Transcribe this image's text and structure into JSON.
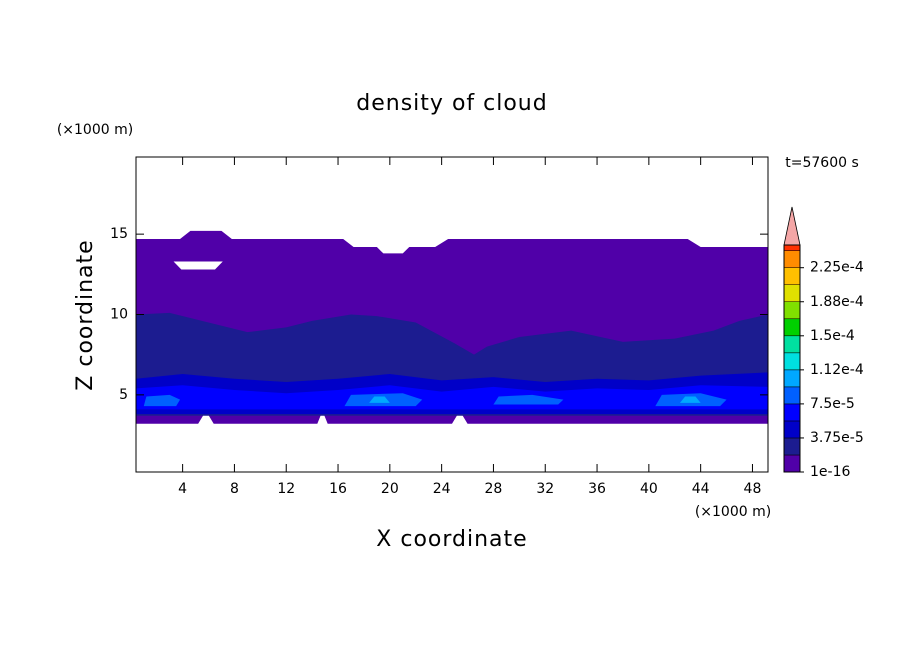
{
  "chart_data": {
    "type": "contour",
    "title": "density of cloud",
    "xlabel": "X coordinate",
    "ylabel": "Z coordinate",
    "x_unit": "(×1000 m)",
    "y_unit": "(×1000 m)",
    "annotation": "t=57600 s",
    "xlim": [
      0.4,
      49.2
    ],
    "ylim": [
      0.2,
      19.8
    ],
    "xticks": [
      4,
      8,
      12,
      16,
      20,
      24,
      28,
      32,
      36,
      40,
      44,
      48
    ],
    "yticks": [
      5,
      10,
      15
    ],
    "regions": [
      {
        "color": "#5000a8",
        "points": [
          [
            0.4,
            3.2
          ],
          [
            5.2,
            3.2
          ],
          [
            5.8,
            4.0
          ],
          [
            6.4,
            3.2
          ],
          [
            14.4,
            3.2
          ],
          [
            14.8,
            4.0
          ],
          [
            15.2,
            3.2
          ],
          [
            24.8,
            3.2
          ],
          [
            25.4,
            4.0
          ],
          [
            26,
            3.2
          ],
          [
            49.2,
            3.2
          ],
          [
            49.2,
            14.2
          ],
          [
            44,
            14.2
          ],
          [
            43,
            14.7
          ],
          [
            24.5,
            14.7
          ],
          [
            23.5,
            14.2
          ],
          [
            21.5,
            14.2
          ],
          [
            21,
            13.8
          ],
          [
            19.5,
            13.8
          ],
          [
            19,
            14.2
          ],
          [
            17.2,
            14.2
          ],
          [
            16.4,
            14.7
          ],
          [
            7.8,
            14.7
          ],
          [
            7,
            15.2
          ],
          [
            4.6,
            15.2
          ],
          [
            3.8,
            14.7
          ],
          [
            0.4,
            14.7
          ]
        ]
      },
      {
        "color": "#ffffff",
        "points": [
          [
            3.3,
            13.3
          ],
          [
            7.1,
            13.3
          ],
          [
            6.5,
            12.8
          ],
          [
            3.9,
            12.8
          ]
        ]
      },
      {
        "color": "#1c1c90",
        "points": [
          [
            0.4,
            3.7
          ],
          [
            49.2,
            3.7
          ],
          [
            49.2,
            10.0
          ],
          [
            47,
            9.6
          ],
          [
            45,
            9.0
          ],
          [
            42,
            8.5
          ],
          [
            38,
            8.3
          ],
          [
            34,
            9.0
          ],
          [
            30,
            8.6
          ],
          [
            27.5,
            8.0
          ],
          [
            26.5,
            7.5
          ],
          [
            25,
            8.2
          ],
          [
            22,
            9.5
          ],
          [
            19,
            9.9
          ],
          [
            17,
            10.0
          ],
          [
            14,
            9.6
          ],
          [
            12,
            9.2
          ],
          [
            9,
            8.9
          ],
          [
            6,
            9.5
          ],
          [
            3,
            10.1
          ],
          [
            0.4,
            10.0
          ]
        ]
      },
      {
        "color": "#0000c8",
        "points": [
          [
            0.4,
            3.8
          ],
          [
            49.2,
            3.8
          ],
          [
            49.2,
            6.4
          ],
          [
            44,
            6.2
          ],
          [
            40,
            5.9
          ],
          [
            36,
            6.0
          ],
          [
            32,
            5.8
          ],
          [
            28,
            6.1
          ],
          [
            24,
            5.9
          ],
          [
            20,
            6.3
          ],
          [
            16,
            6.0
          ],
          [
            12,
            5.8
          ],
          [
            8,
            6.0
          ],
          [
            4,
            6.3
          ],
          [
            0.4,
            6.0
          ]
        ]
      },
      {
        "color": "#0000ff",
        "points": [
          [
            0.4,
            4.1
          ],
          [
            49.2,
            4.1
          ],
          [
            49.2,
            5.5
          ],
          [
            44,
            5.6
          ],
          [
            40,
            5.3
          ],
          [
            36,
            5.4
          ],
          [
            32,
            5.2
          ],
          [
            28,
            5.5
          ],
          [
            24,
            5.2
          ],
          [
            20,
            5.6
          ],
          [
            16,
            5.3
          ],
          [
            12,
            5.1
          ],
          [
            8,
            5.3
          ],
          [
            4,
            5.6
          ],
          [
            0.4,
            5.4
          ]
        ]
      },
      {
        "color": "#0060ff",
        "points": [
          [
            1.0,
            4.3
          ],
          [
            3.5,
            4.3
          ],
          [
            3.8,
            4.7
          ],
          [
            3.0,
            5.0
          ],
          [
            1.2,
            4.9
          ]
        ]
      },
      {
        "color": "#0060ff",
        "points": [
          [
            16.5,
            4.3
          ],
          [
            22,
            4.3
          ],
          [
            22.5,
            4.7
          ],
          [
            21,
            5.1
          ],
          [
            17,
            5.0
          ]
        ]
      },
      {
        "color": "#0060ff",
        "points": [
          [
            28,
            4.4
          ],
          [
            33,
            4.4
          ],
          [
            33.4,
            4.7
          ],
          [
            31,
            5.0
          ],
          [
            28.4,
            4.9
          ]
        ]
      },
      {
        "color": "#0060ff",
        "points": [
          [
            40.5,
            4.3
          ],
          [
            45.5,
            4.3
          ],
          [
            46,
            4.7
          ],
          [
            44,
            5.1
          ],
          [
            41,
            5.0
          ]
        ]
      },
      {
        "color": "#00a8ff",
        "points": [
          [
            18.4,
            4.5
          ],
          [
            20,
            4.5
          ],
          [
            19.6,
            4.9
          ],
          [
            18.8,
            4.9
          ]
        ]
      },
      {
        "color": "#00a8ff",
        "points": [
          [
            42.4,
            4.5
          ],
          [
            44,
            4.5
          ],
          [
            43.6,
            4.9
          ],
          [
            42.8,
            4.9
          ]
        ]
      }
    ],
    "colorbar": {
      "lim": [
        0,
        0.00025
      ],
      "ticks": [
        1e-16,
        {
          "value": 3.75e-05,
          "label": "3.75e-5"
        },
        {
          "value": 7.5e-05,
          "label": "7.5e-5"
        },
        {
          "value": 0.0001125,
          "label": "1.12e-4"
        },
        {
          "value": 0.00015,
          "label": "1.5e-4"
        },
        {
          "value": 0.0001875,
          "label": "1.88e-4"
        },
        {
          "value": 0.000225,
          "label": "2.25e-4"
        }
      ],
      "colors": [
        "#5000a8",
        "#1c1c90",
        "#0000c8",
        "#0000ff",
        "#0060ff",
        "#00a8ff",
        "#00e0e0",
        "#00e0a0",
        "#00d000",
        "#80e000",
        "#e0e000",
        "#ffc000",
        "#ff8c00",
        "#ff3000"
      ],
      "extend_color": "#f4a6a6"
    }
  }
}
